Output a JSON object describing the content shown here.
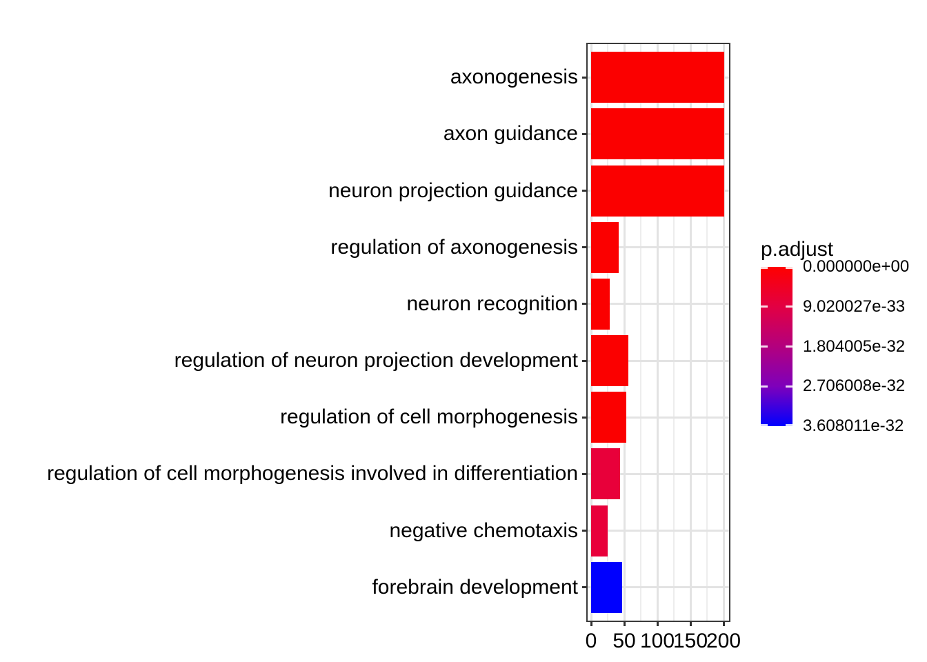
{
  "figure": {
    "background_color": "#FFFFFF",
    "text_color": "#000000"
  },
  "chart_data": {
    "type": "bar",
    "orientation": "horizontal",
    "title": "",
    "xlabel": "",
    "ylabel": "",
    "categories": [
      "axonogenesis",
      "axon guidance",
      "neuron projection guidance",
      "regulation of axonogenesis",
      "neuron recognition",
      "regulation of neuron projection development",
      "regulation of cell morphogenesis",
      "regulation of cell morphogenesis involved in differentiation",
      "negative chemotaxis",
      "forebrain development"
    ],
    "values": [
      201,
      201,
      201,
      42,
      28,
      56,
      53,
      44,
      25,
      47
    ],
    "bar_colors": [
      "#FB0000",
      "#FB0000",
      "#FB0000",
      "#FB0000",
      "#FB0000",
      "#FB0000",
      "#FB0000",
      "#E8003A",
      "#E8003A",
      "#0000FE"
    ],
    "x_ticks": [
      0,
      50,
      100,
      150,
      200
    ],
    "x_tick_labels": [
      "0",
      "50",
      "100",
      "150",
      "200"
    ],
    "x_minor_ticks": [
      25,
      75,
      125,
      175
    ],
    "xlim": [
      -10,
      210
    ],
    "grid": true,
    "panel_border": true,
    "legend": {
      "title": "p.adjust",
      "position": "right",
      "style": "colorbar",
      "labels": [
        "0.000000e+00",
        "9.020027e-33",
        "1.804005e-32",
        "2.706008e-32",
        "3.608011e-32"
      ],
      "gradient_stops": [
        "#FF0000",
        "#E20043",
        "#B3007E",
        "#7E00BB",
        "#0000FF"
      ]
    },
    "colors": {
      "grid_major": "#E3E3E3",
      "grid_minor": "#EDEDED",
      "axis_tick": "#333333"
    }
  }
}
